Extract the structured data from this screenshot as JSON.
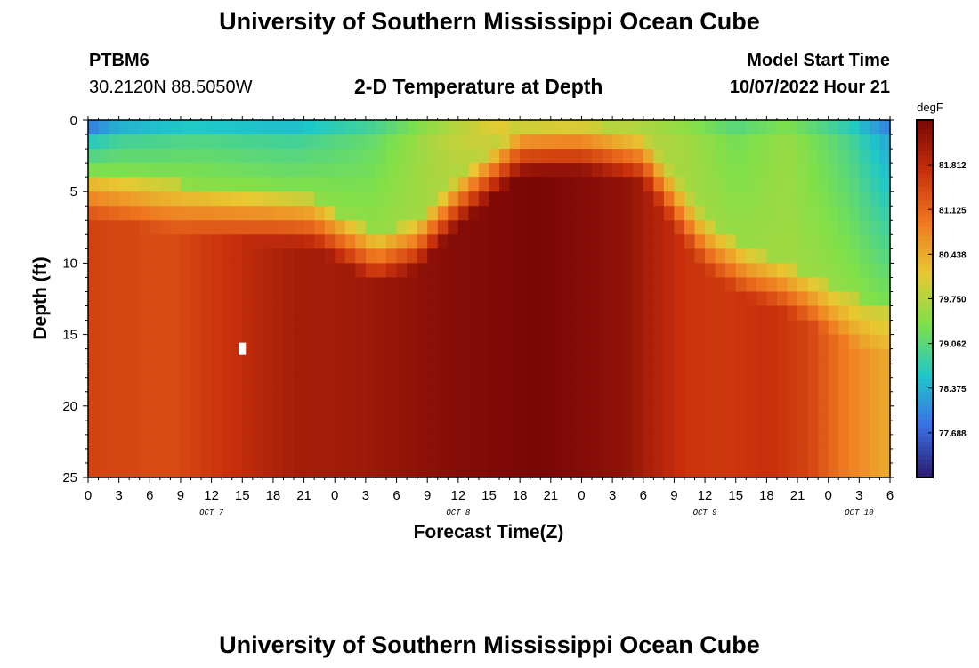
{
  "header": {
    "title": "University of Southern Mississippi Ocean Cube",
    "station_id": "PTBM6",
    "coords": "30.2120N  88.5050W",
    "plot_title": "2-D Temperature at Depth",
    "model_label": "Model Start Time",
    "model_time": "10/07/2022 Hour 21"
  },
  "footer": {
    "title": "University of Southern Mississippi Ocean Cube"
  },
  "chart_data": {
    "type": "heatmap",
    "title": "2-D Temperature at Depth",
    "xlabel": "Forecast Time(Z)",
    "ylabel": "Depth (ft)",
    "x_range_hours": [
      0,
      78
    ],
    "y_range_ft": [
      0,
      25
    ],
    "x_tick_labels": [
      "0",
      "3",
      "6",
      "9",
      "12",
      "15",
      "18",
      "21",
      "0",
      "3",
      "6",
      "9",
      "12",
      "15",
      "18",
      "21",
      "0",
      "3",
      "6",
      "9",
      "12",
      "15",
      "18",
      "21",
      "0",
      "3",
      "6"
    ],
    "y_ticks": [
      0,
      5,
      10,
      15,
      20,
      25
    ],
    "date_labels": [
      {
        "label": "OCT 7",
        "hour": 12
      },
      {
        "label": "OCT 8",
        "hour": 36
      },
      {
        "label": "OCT 9",
        "hour": 60
      },
      {
        "label": "OCT 10",
        "hour": 75
      }
    ],
    "colorbar": {
      "unit": "degF",
      "range": [
        77.0,
        82.5
      ],
      "tick_labels": [
        "81.812",
        "81.125",
        "80.438",
        "79.750",
        "79.062",
        "78.375",
        "77.688"
      ]
    },
    "colors": {
      "c1": "#2a1a6e",
      "c2": "#3b6fe6",
      "c3": "#1fc8c8",
      "c4": "#7fe04a",
      "c5": "#e8c832",
      "c6": "#f07820",
      "c7": "#c8300c",
      "c8": "#7a0606"
    },
    "marker": {
      "hour": 15,
      "depth_ft": 16
    }
  }
}
